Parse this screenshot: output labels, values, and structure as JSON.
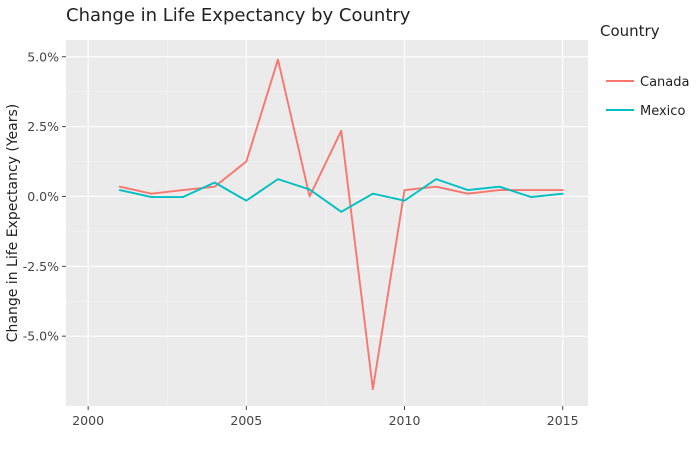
{
  "chart_data": {
    "type": "line",
    "title": "Change in Life Expectancy by Country",
    "xlabel": "",
    "ylabel": "Change in Life Expectancy (Years)",
    "x": [
      2001,
      2002,
      2003,
      2004,
      2005,
      2006,
      2007,
      2008,
      2009,
      2010,
      2011,
      2012,
      2013,
      2014,
      2015
    ],
    "xlim": [
      1999.3,
      2015.8
    ],
    "ylim": [
      -7.5,
      5.6
    ],
    "x_ticks": [
      2000,
      2005,
      2010,
      2015
    ],
    "x_tick_labels": [
      "2000",
      "2005",
      "2010",
      "2015"
    ],
    "y_ticks": [
      -5.0,
      -2.5,
      0.0,
      2.5,
      5.0
    ],
    "y_tick_labels": [
      "-5.0%",
      "-2.5%",
      "0.0%",
      "2.5%",
      "5.0%"
    ],
    "grid": true,
    "legend": {
      "title": "Country",
      "position": "right"
    },
    "series": [
      {
        "name": "Canada",
        "color": "#F8766D",
        "values": [
          0.35,
          0.1,
          0.23,
          0.35,
          1.25,
          4.9,
          0.0,
          2.35,
          -6.9,
          0.23,
          0.35,
          0.1,
          0.23,
          0.23,
          0.23
        ]
      },
      {
        "name": "Mexico",
        "color": "#00BFC4",
        "values": [
          0.23,
          -0.02,
          -0.02,
          0.5,
          -0.15,
          0.62,
          0.25,
          -0.55,
          0.1,
          -0.15,
          0.62,
          0.23,
          0.35,
          -0.02,
          0.1
        ]
      }
    ]
  }
}
